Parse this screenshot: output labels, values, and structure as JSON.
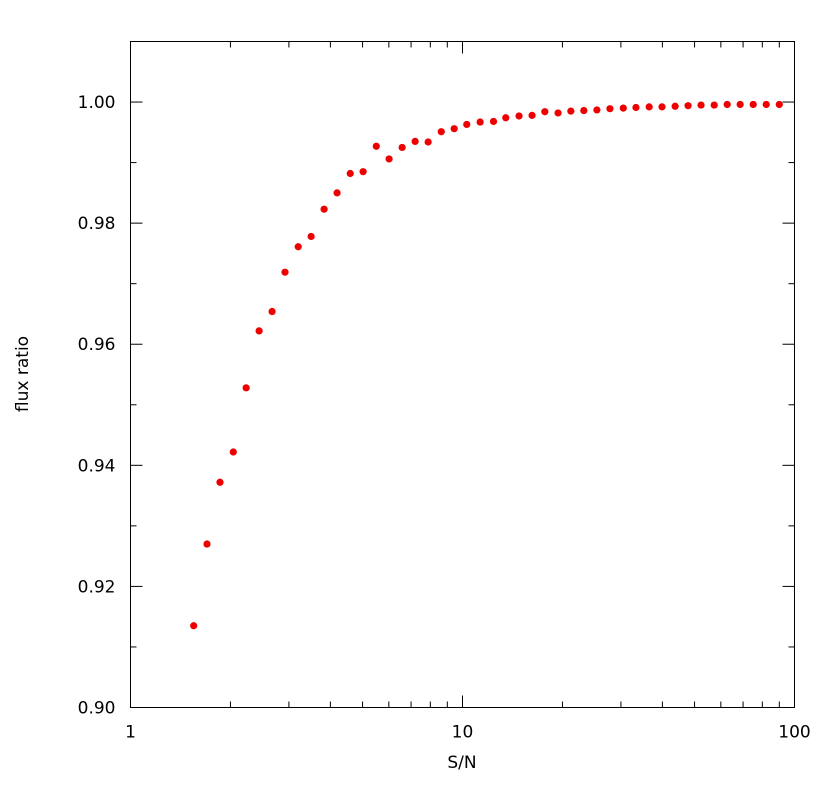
{
  "chart_data": {
    "type": "scatter",
    "title": "",
    "xlabel": "S/N",
    "ylabel": "flux ratio",
    "x_scale": "log",
    "xlim": [
      1,
      100
    ],
    "ylim": [
      0.9,
      1.01
    ],
    "x_ticks": [
      1,
      10,
      100
    ],
    "x_tick_labels": [
      "1",
      "10",
      "100"
    ],
    "y_ticks": [
      0.9,
      0.92,
      0.94,
      0.96,
      0.98,
      1.0
    ],
    "y_tick_labels": [
      "0.90",
      "0.92",
      "0.94",
      "0.96",
      "0.98",
      "1.00"
    ],
    "grid": false,
    "marker_color": "#ee0000",
    "series": [
      {
        "x": [
          1.55,
          1.7,
          1.86,
          2.04,
          2.23,
          2.44,
          2.67,
          2.92,
          3.2,
          3.5,
          3.83,
          4.19,
          4.59,
          5.02,
          5.5,
          6.01,
          6.58,
          7.2,
          7.88,
          8.63,
          9.44,
          10.3,
          11.3,
          12.4,
          13.5,
          14.8,
          16.2,
          17.7,
          19.4,
          21.2,
          23.2,
          25.4,
          27.8,
          30.5,
          33.3,
          36.5,
          39.9,
          43.7,
          47.8,
          52.3,
          57.3,
          62.7,
          68.6,
          75.1,
          82.2,
          90.0
        ],
        "y": [
          0.9135,
          0.927,
          0.9372,
          0.9422,
          0.9528,
          0.9622,
          0.9654,
          0.9719,
          0.9761,
          0.9778,
          0.9823,
          0.985,
          0.9882,
          0.9885,
          0.9927,
          0.9906,
          0.9925,
          0.9935,
          0.9934,
          0.9951,
          0.9956,
          0.9963,
          0.9967,
          0.9968,
          0.9974,
          0.9977,
          0.9978,
          0.9984,
          0.9982,
          0.9985,
          0.9986,
          0.9987,
          0.9989,
          0.999,
          0.9991,
          0.9992,
          0.9992,
          0.9993,
          0.9994,
          0.9995,
          0.9995,
          0.9996,
          0.9996,
          0.9996,
          0.9996,
          0.9996
        ]
      }
    ]
  }
}
